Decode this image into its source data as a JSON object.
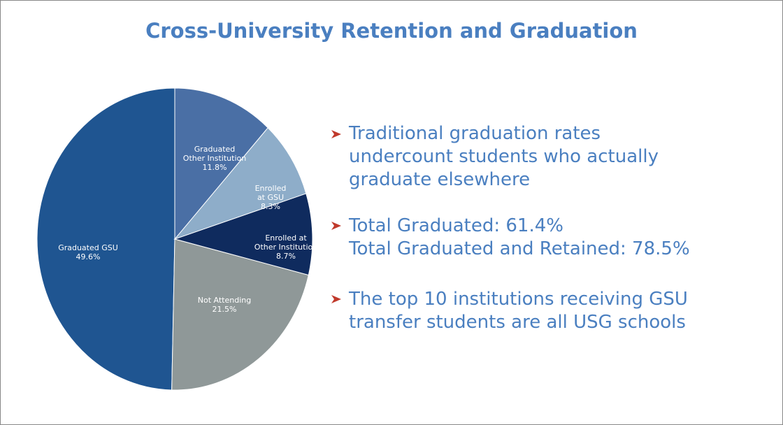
{
  "chart_data": {
    "type": "pie",
    "title": "Cross-University Retention and Graduation",
    "categories": [
      "Graduated\nOther Institution",
      "Enrolled\nat GSU",
      "Enrolled at\nOther Institution",
      "Not Attending",
      "Graduated GSU"
    ],
    "values": [
      11.8,
      8.3,
      8.7,
      21.5,
      49.6
    ],
    "value_labels": [
      "11.8%",
      "8.3%",
      "8.7%",
      "21.5%",
      "49.6%"
    ],
    "colors": [
      "#4a6fa5",
      "#8eadc9",
      "#0f2b5e",
      "#8f9898",
      "#1f5591"
    ]
  },
  "bullets": [
    "Traditional graduation rates\nundercount students who actually\ngraduate elsewhere",
    "Total Graduated: 61.4%\nTotal Graduated and Retained: 78.5%",
    "The top 10 institutions receiving GSU\ntransfer students are all USG schools"
  ]
}
